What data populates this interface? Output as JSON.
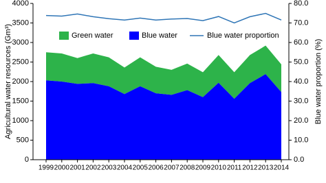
{
  "chart_data": {
    "type": "stacked-area-line",
    "categories": [
      "1999",
      "2000",
      "2001",
      "2002",
      "2003",
      "2004",
      "2005",
      "2006",
      "2007",
      "2008",
      "2009",
      "2010",
      "2011",
      "2012",
      "2013",
      "2014"
    ],
    "series": [
      {
        "name": "Blue water",
        "color": "#0000ff",
        "values": [
          2030,
          2000,
          1940,
          1960,
          1880,
          1680,
          1880,
          1700,
          1660,
          1780,
          1600,
          1970,
          1560,
          1960,
          2190,
          1730
        ]
      },
      {
        "name": "Green water",
        "color": "#2db34a",
        "values": [
          720,
          720,
          660,
          760,
          740,
          680,
          740,
          680,
          640,
          680,
          640,
          710,
          680,
          720,
          730,
          710
        ]
      },
      {
        "name": "Blue water proportion",
        "color": "#2e75b6",
        "axis": "y2",
        "values": [
          73.8,
          73.5,
          74.6,
          73.2,
          72.2,
          71.5,
          72.5,
          71.5,
          72.0,
          72.3,
          71.2,
          73.3,
          70.0,
          73.2,
          74.9,
          71.5
        ]
      }
    ],
    "ylabel": "Agricultural water resources (Gm³)",
    "y2label": "Blue water proportion (%)",
    "ylim": [
      0,
      4000
    ],
    "yticks": [
      0,
      500,
      1000,
      1500,
      2000,
      2500,
      3000,
      3500,
      4000
    ],
    "y2lim": [
      0,
      80
    ],
    "y2ticks": [
      {
        "value": 0,
        "label": "0.0"
      },
      {
        "value": 10,
        "label": "10.0"
      },
      {
        "value": 20,
        "label": "20.0"
      },
      {
        "value": 30,
        "label": "30.0"
      },
      {
        "value": 40,
        "label": "40.0"
      },
      {
        "value": 50,
        "label": "50.0"
      },
      {
        "value": 60,
        "label": "60.0"
      },
      {
        "value": 70,
        "label": "70.0"
      },
      {
        "value": 80,
        "label": "80.0"
      }
    ],
    "legend": "top"
  }
}
